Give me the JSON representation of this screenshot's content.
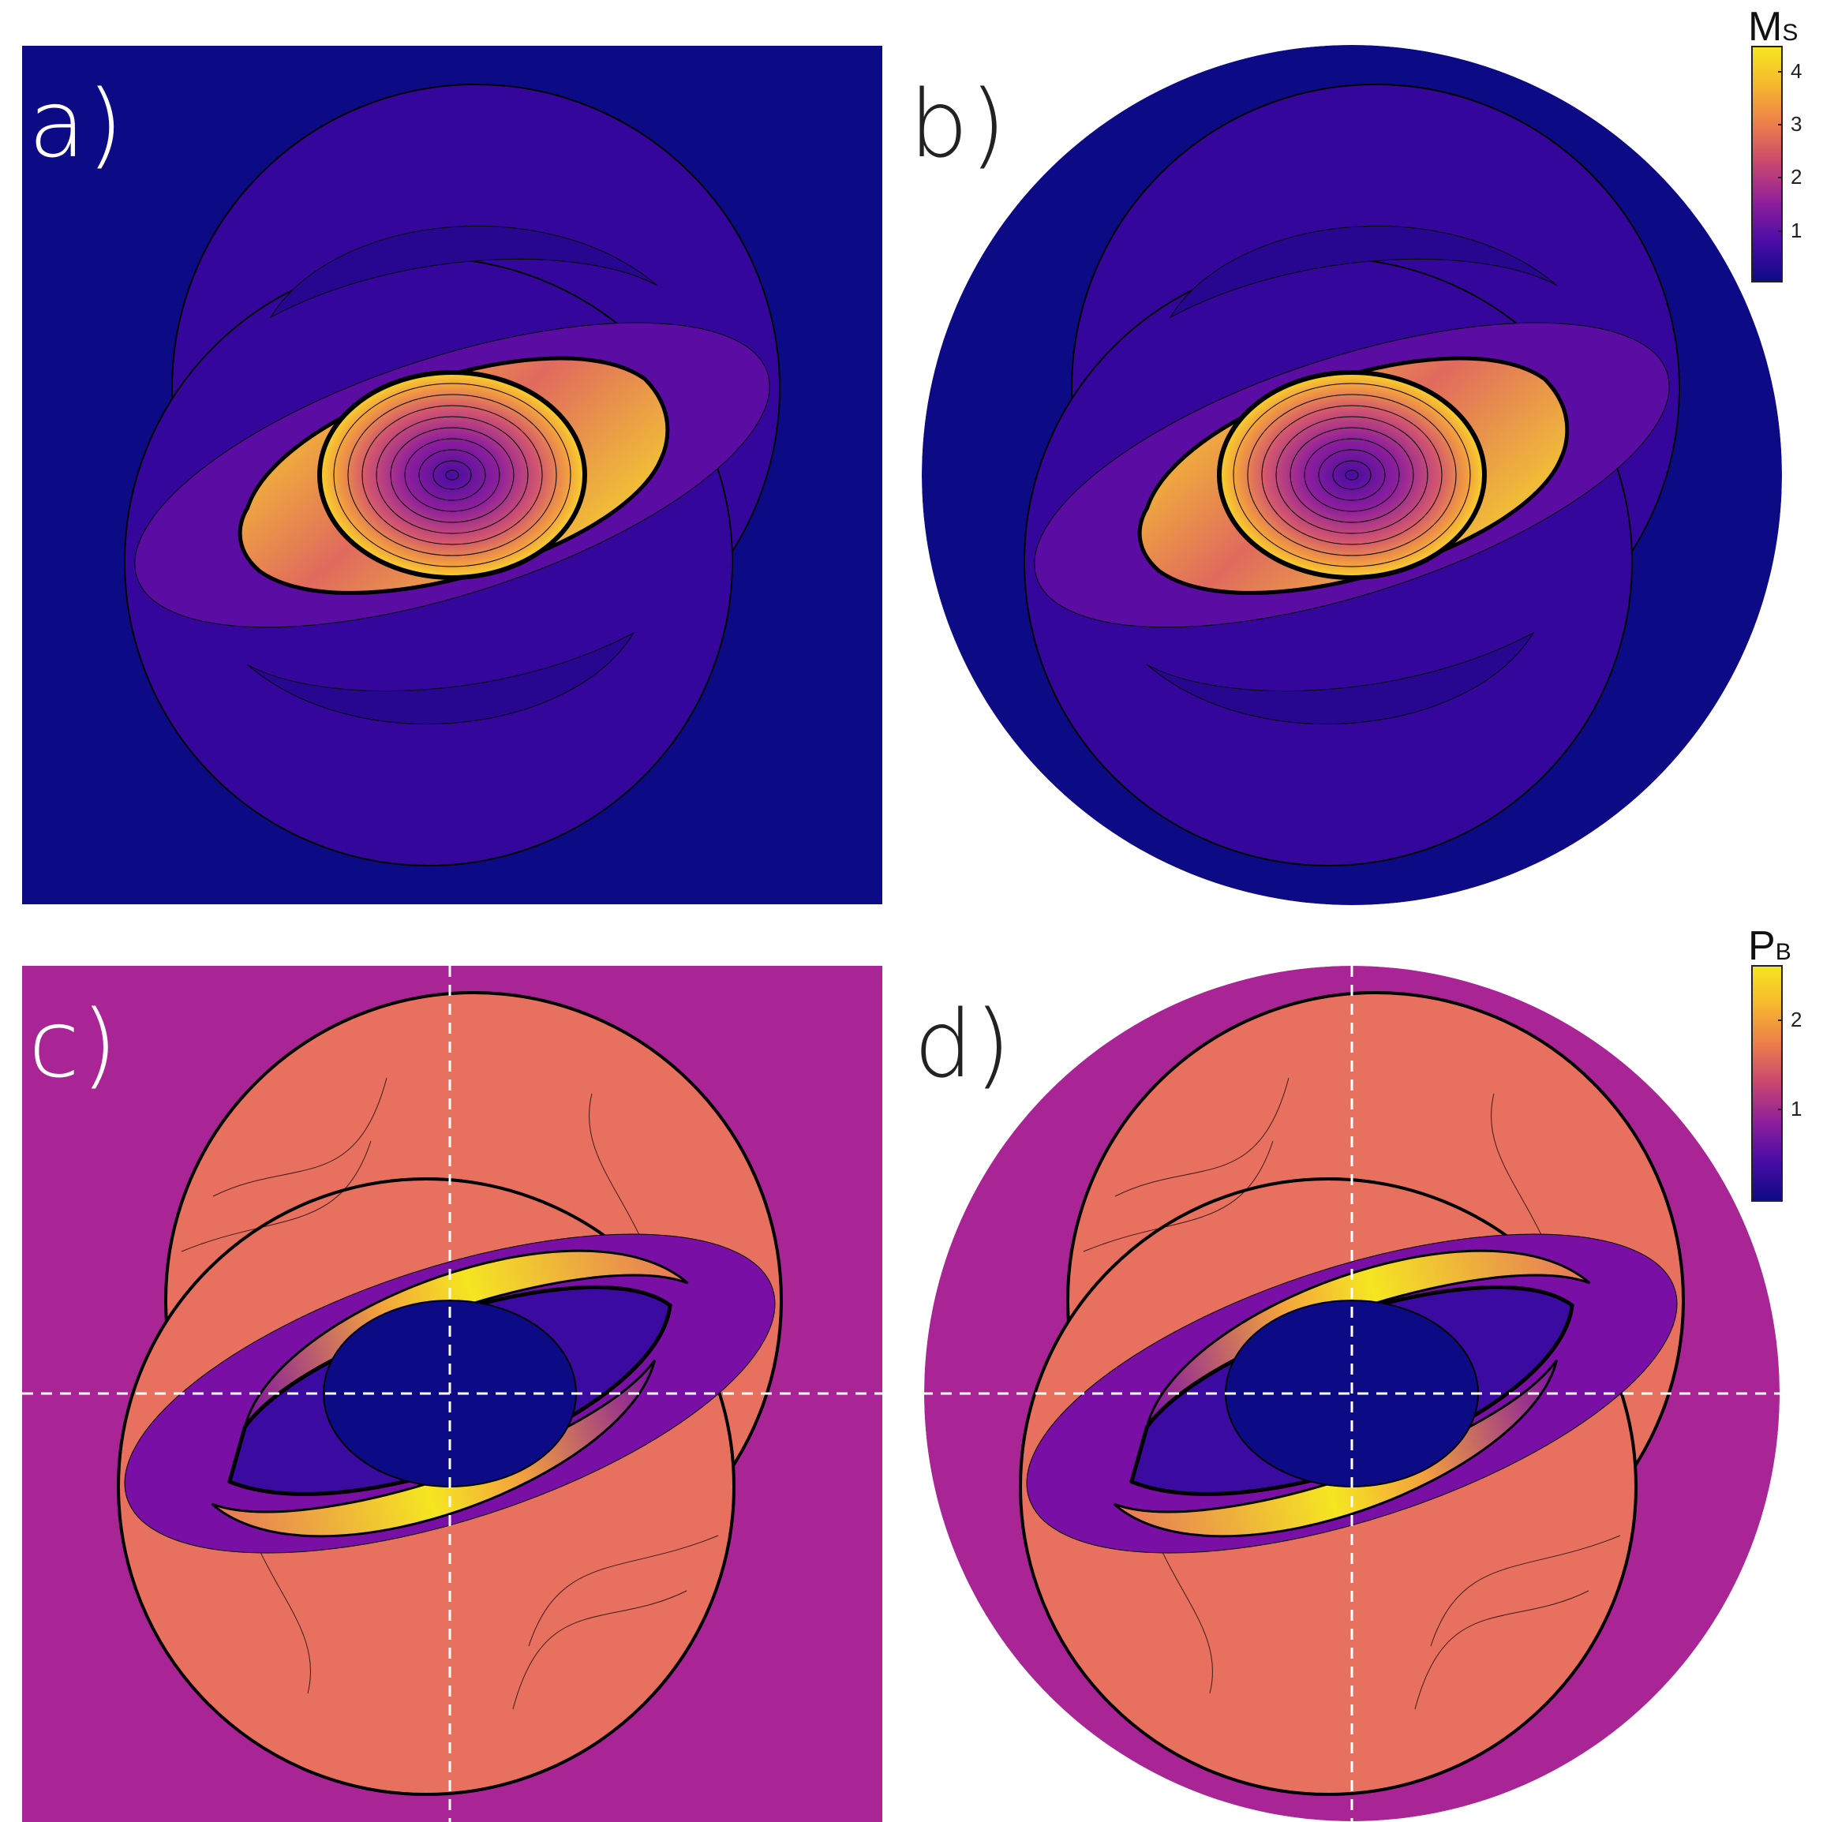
{
  "panels": [
    {
      "label": "a)",
      "field": "Ms",
      "domain": "square"
    },
    {
      "label": "b)",
      "field": "Ms",
      "domain": "circle"
    },
    {
      "label": "c)",
      "field": "PB",
      "domain": "square"
    },
    {
      "label": "d)",
      "field": "PB",
      "domain": "circle"
    }
  ],
  "colorbars": [
    {
      "title_main": "M",
      "title_sub": "S",
      "ticks": [
        "4",
        "3",
        "2",
        "1"
      ],
      "range": [
        0,
        4.4
      ]
    },
    {
      "title_main": "P",
      "title_sub": "B",
      "ticks": [
        "2",
        "1"
      ],
      "range": [
        0,
        2.6
      ]
    }
  ],
  "colors": {
    "ms_background": "#0d0a85",
    "ms_ring": "#35069c",
    "pb_background": "#a92595",
    "pb_ring": "#e8705e",
    "pb_core": "#0d0a85",
    "high": "#f5e621",
    "mid": "#e6775a",
    "violet": "#7a0fa6"
  }
}
